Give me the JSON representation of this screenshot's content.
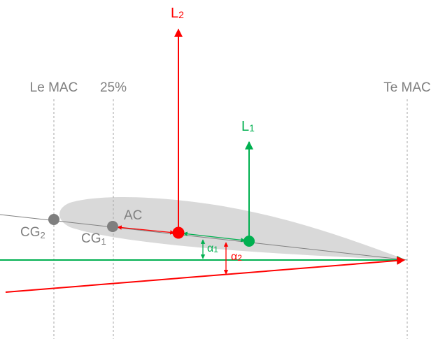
{
  "labels": {
    "le_mac": "Le MAC",
    "quarter": "25%",
    "te_mac": "Te MAC",
    "ac": "AC",
    "cg2_main": "CG",
    "cg2_sub": "2",
    "cg1_main": "CG",
    "cg1_sub": "1",
    "l2_main": "L",
    "l2_sub": "2",
    "l1_main": "L",
    "l1_sub": "1",
    "alpha1_main": "α",
    "alpha1_sub": "1",
    "alpha2_main": "α",
    "alpha2_sub": "2"
  },
  "colors": {
    "red": "#ff0000",
    "green": "#00b050",
    "grey_text": "#808080",
    "grey_point": "#7f7f7f",
    "airfoil_fill": "#d9d9d9",
    "guide_line": "#a6a6a6"
  }
}
